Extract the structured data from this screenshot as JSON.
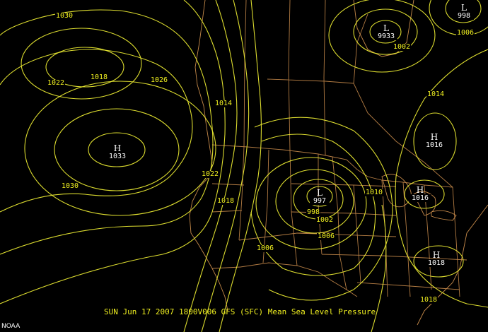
{
  "map": {
    "caption": "SUN Jun 17 2007 1800V006 GFS (SFC) Mean Sea Level Pressure",
    "credit": "NOAA",
    "colors": {
      "isobar": "#e8e832",
      "border": "#c68a4a",
      "background": "#000000",
      "center_text": "#ffffff"
    },
    "isobar_labels": [
      "1030",
      "1022",
      "1018",
      "1026",
      "1014",
      "1022",
      "1030",
      "1018",
      "1006",
      "1010",
      "998",
      "1002",
      "1006",
      "1002",
      "1006",
      "1014",
      "1018"
    ],
    "pressure_centers": [
      {
        "type": "H",
        "value": "1033"
      },
      {
        "type": "L",
        "value": "997"
      },
      {
        "type": "L",
        "value": "998"
      },
      {
        "type": "L",
        "value": "9933"
      },
      {
        "type": "H",
        "value": "1016"
      },
      {
        "type": "H",
        "value": "1016"
      },
      {
        "type": "H",
        "value": "1018"
      }
    ]
  }
}
